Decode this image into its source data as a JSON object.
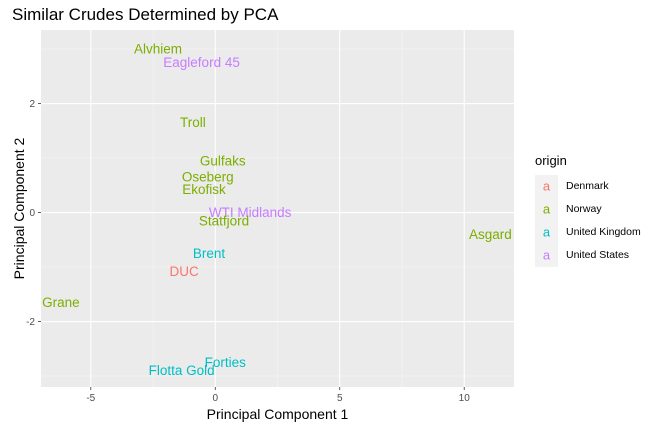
{
  "chart_data": {
    "type": "scatter",
    "title": "Similar Crudes Determined by PCA",
    "xlabel": "Principal Component 1",
    "ylabel": "Principal Component 2",
    "xlim": [
      -7,
      12
    ],
    "ylim": [
      -3.2,
      3.35
    ],
    "x_ticks": [
      -5,
      0,
      5,
      10
    ],
    "x_tick_labels": [
      "-5",
      "0",
      "5",
      "10"
    ],
    "y_ticks": [
      -2,
      0,
      2
    ],
    "y_tick_labels": [
      "-2",
      "0",
      "2"
    ],
    "grid": true,
    "legend": {
      "title": "origin",
      "position": "right",
      "key_glyph": "a",
      "entries": [
        {
          "label": "Denmark",
          "color": "#F8766D"
        },
        {
          "label": "Norway",
          "color": "#7CAE00"
        },
        {
          "label": "United Kingdom",
          "color": "#00BFC4"
        },
        {
          "label": "United States",
          "color": "#C77CFF"
        }
      ]
    },
    "points": [
      {
        "label": "Alvhiem",
        "x": -2.3,
        "y": 3.0,
        "origin": "Norway"
      },
      {
        "label": "Eagleford 45",
        "x": -0.55,
        "y": 2.75,
        "origin": "United States"
      },
      {
        "label": "Troll",
        "x": -0.9,
        "y": 1.65,
        "origin": "Norway"
      },
      {
        "label": "Gulfaks",
        "x": 0.3,
        "y": 0.95,
        "origin": "Norway"
      },
      {
        "label": "Oseberg",
        "x": -0.3,
        "y": 0.65,
        "origin": "Norway"
      },
      {
        "label": "Ekofisk",
        "x": -0.45,
        "y": 0.42,
        "origin": "Norway"
      },
      {
        "label": "WTI Midlands",
        "x": 1.4,
        "y": 0.0,
        "origin": "United States"
      },
      {
        "label": "Statfjord",
        "x": 0.35,
        "y": -0.15,
        "origin": "Norway"
      },
      {
        "label": "Asgard",
        "x": 11.05,
        "y": -0.4,
        "origin": "Norway"
      },
      {
        "label": "Brent",
        "x": -0.25,
        "y": -0.75,
        "origin": "United Kingdom"
      },
      {
        "label": "DUC",
        "x": -1.25,
        "y": -1.08,
        "origin": "Denmark"
      },
      {
        "label": "Grane",
        "x": -6.2,
        "y": -1.65,
        "origin": "Norway"
      },
      {
        "label": "Forties",
        "x": 0.4,
        "y": -2.75,
        "origin": "United Kingdom"
      },
      {
        "label": "Flotta Gold",
        "x": -1.35,
        "y": -2.9,
        "origin": "United Kingdom"
      }
    ]
  }
}
